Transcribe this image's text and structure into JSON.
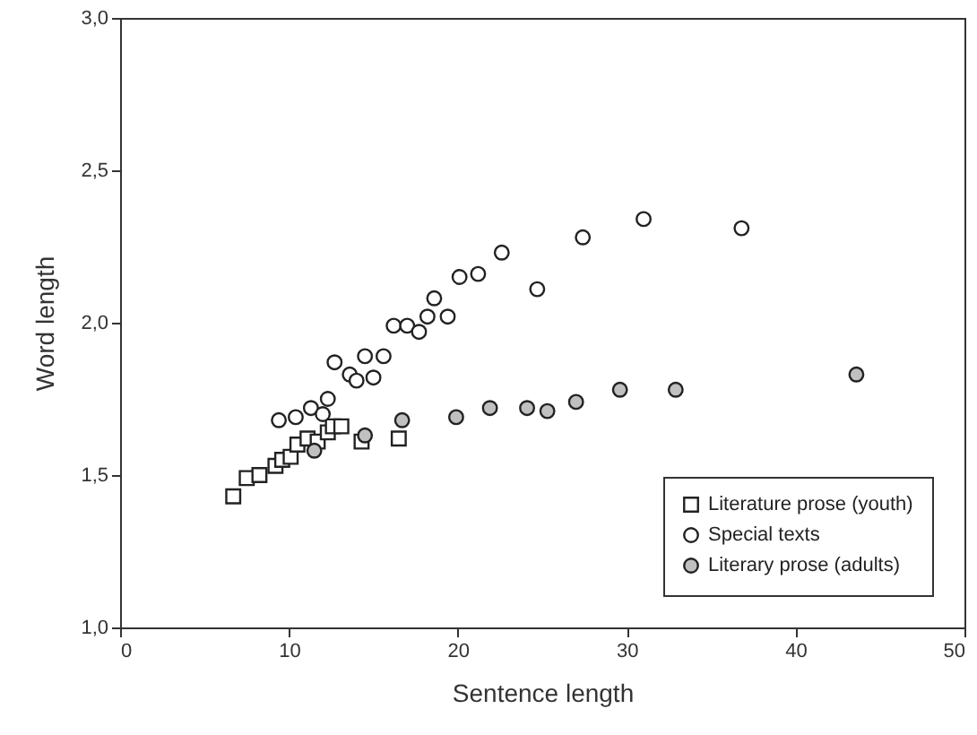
{
  "chart_data": {
    "type": "scatter",
    "xlabel": "Sentence length",
    "ylabel": "Word length",
    "xlim": [
      0,
      50
    ],
    "xticks": [
      0,
      10,
      20,
      30,
      40,
      50
    ],
    "ylim": [
      1,
      3
    ],
    "yticks": [
      {
        "value": 1,
        "label": "1,0"
      },
      {
        "value": 1.5,
        "label": "1,5"
      },
      {
        "value": 2,
        "label": "2,0"
      },
      {
        "value": 2.5,
        "label": "2,5"
      },
      {
        "value": 3,
        "label": "3,0"
      }
    ],
    "grid": false,
    "legend": "bottom right",
    "series": [
      {
        "name": "Literature prose (youth)",
        "color": "#ffffff",
        "marker": "square",
        "x": [
          6.7,
          7.5,
          8.25,
          9.2,
          9.6,
          10.1,
          10.5,
          11.1,
          11.7,
          12.3,
          12.6,
          13.1,
          14.3,
          16.5
        ],
        "values": [
          1.43,
          1.49,
          1.5,
          1.53,
          1.55,
          1.56,
          1.6,
          1.62,
          1.61,
          1.64,
          1.66,
          1.66,
          1.61,
          1.62
        ]
      },
      {
        "name": "Special texts",
        "color": "#ffffff",
        "marker": "circle",
        "x": [
          9.4,
          10.4,
          11.3,
          12.0,
          12.3,
          12.7,
          13.6,
          14.0,
          14.5,
          15.0,
          15.6,
          16.2,
          17.0,
          17.7,
          18.2,
          18.6,
          19.4,
          20.1,
          21.2,
          22.6,
          24.7,
          27.4,
          31.0,
          36.8
        ],
        "values": [
          1.68,
          1.69,
          1.72,
          1.7,
          1.75,
          1.87,
          1.83,
          1.81,
          1.89,
          1.82,
          1.89,
          1.99,
          1.99,
          1.97,
          2.02,
          2.08,
          2.02,
          2.15,
          2.16,
          2.23,
          2.11,
          2.28,
          2.34,
          2.31
        ]
      },
      {
        "name": "Literary prose (adults)",
        "color": "#c0c0c0",
        "marker": "circle",
        "x": [
          11.5,
          14.5,
          16.7,
          19.9,
          21.9,
          24.1,
          25.3,
          27.0,
          29.6,
          32.9,
          43.6
        ],
        "values": [
          1.58,
          1.63,
          1.68,
          1.69,
          1.72,
          1.72,
          1.71,
          1.74,
          1.78,
          1.78,
          1.83
        ]
      }
    ]
  }
}
